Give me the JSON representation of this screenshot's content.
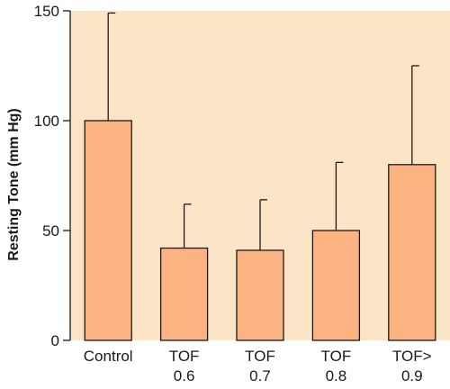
{
  "chart_data": {
    "type": "bar",
    "title": "",
    "xlabel": "",
    "ylabel": "Resting Tone (mm Hg)",
    "ylim": [
      0,
      150
    ],
    "yticks": [
      "0",
      "50",
      "100",
      "150"
    ],
    "categories": [
      [
        "Control"
      ],
      [
        "TOF",
        "0.6"
      ],
      [
        "TOF",
        "0.7"
      ],
      [
        "TOF",
        "0.8"
      ],
      [
        "TOF>",
        "0.9"
      ]
    ],
    "values": [
      100,
      42,
      41,
      50,
      80
    ],
    "error_upper": [
      149,
      62,
      64,
      81,
      125
    ],
    "grid": false,
    "legend": "none"
  },
  "colors": {
    "plot_background": "#FCE5C6",
    "bar_fill": "#FBB382",
    "bar_stroke": "#1a1a1a",
    "axis": "#1a1a1a"
  }
}
